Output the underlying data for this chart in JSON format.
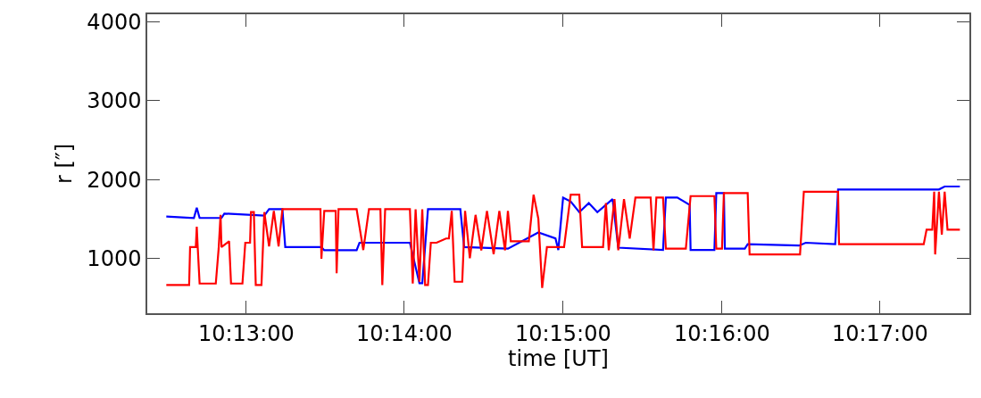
{
  "chart_data": {
    "type": "line",
    "xlabel": "time [UT]",
    "ylabel": "r [″]",
    "xlim": [
      10.2063,
      10.2927
    ],
    "ylim": [
      300,
      4100
    ],
    "xticks": [
      {
        "value": 10.2167,
        "label": "10:13:00"
      },
      {
        "value": 10.2333,
        "label": "10:14:00"
      },
      {
        "value": 10.25,
        "label": "10:15:00"
      },
      {
        "value": 10.2667,
        "label": "10:16:00"
      },
      {
        "value": 10.2833,
        "label": "10:17:00"
      }
    ],
    "yticks": [
      1000,
      2000,
      3000,
      4000
    ],
    "marker": "none",
    "line_style": "solid",
    "series": [
      {
        "color": "#0000ff",
        "x": [
          10.2083,
          10.2112,
          10.2115,
          10.2118,
          10.2141,
          10.2144,
          10.2186,
          10.2191,
          10.2205,
          10.2208,
          10.2246,
          10.2249,
          10.2283,
          10.2286,
          10.2339,
          10.2349,
          10.2352,
          10.2358,
          10.2392,
          10.2396,
          10.2442,
          10.2474,
          10.2492,
          10.2495,
          10.25,
          10.2508,
          10.2517,
          10.2527,
          10.2536,
          10.2552,
          10.2558,
          10.2605,
          10.2608,
          10.262,
          10.2633,
          10.2634,
          10.2659,
          10.2661,
          10.2669,
          10.267,
          10.2691,
          10.2694,
          10.2748,
          10.2755,
          10.2786,
          10.2789,
          10.2895,
          10.2901,
          10.2917
        ],
        "values": [
          1529,
          1511,
          1640,
          1511,
          1511,
          1567,
          1540,
          1622,
          1622,
          1140,
          1140,
          1100,
          1100,
          1196,
          1196,
          681,
          681,
          1622,
          1622,
          1140,
          1120,
          1326,
          1251,
          1103,
          1770,
          1720,
          1585,
          1700,
          1585,
          1751,
          1133,
          1103,
          1770,
          1770,
          1678,
          1103,
          1103,
          1826,
          1826,
          1122,
          1122,
          1178,
          1160,
          1196,
          1178,
          1873,
          1873,
          1911,
          1911
        ]
      },
      {
        "color": "#ff0000",
        "x": [
          10.2083,
          10.2107,
          10.2108,
          10.2114,
          10.2115,
          10.2116,
          10.2118,
          10.2135,
          10.2138,
          10.214,
          10.2141,
          10.2149,
          10.2151,
          10.2163,
          10.2166,
          10.2171,
          10.2172,
          10.2175,
          10.2177,
          10.2183,
          10.2186,
          10.2191,
          10.2196,
          10.2201,
          10.2205,
          10.2245,
          10.2246,
          10.2249,
          10.2261,
          10.2262,
          10.2264,
          10.2283,
          10.229,
          10.2296,
          10.2308,
          10.231,
          10.2313,
          10.2339,
          10.2342,
          10.2345,
          10.2349,
          10.2352,
          10.2355,
          10.2358,
          10.2361,
          10.2367,
          10.2377,
          10.238,
          10.2383,
          10.2386,
          10.2394,
          10.2397,
          10.2402,
          10.2408,
          10.2414,
          10.242,
          10.2427,
          10.2433,
          10.2439,
          10.2442,
          10.2445,
          10.2464,
          10.2469,
          10.2474,
          10.2478,
          10.2483,
          10.2501,
          10.2508,
          10.2517,
          10.252,
          10.2542,
          10.2545,
          10.2548,
          10.2554,
          10.2558,
          10.2564,
          10.257,
          10.2576,
          10.2592,
          10.2595,
          10.2598,
          10.2605,
          10.2608,
          10.2629,
          10.2634,
          10.2659,
          10.2661,
          10.2667,
          10.2669,
          10.2694,
          10.2696,
          10.2749,
          10.2753,
          10.2789,
          10.279,
          10.2879,
          10.2882,
          10.2888,
          10.289,
          10.2891,
          10.2895,
          10.2898,
          10.2901,
          10.2904,
          10.2917
        ],
        "values": [
          659,
          659,
          1140,
          1140,
          1400,
          1140,
          677,
          677,
          1120,
          1550,
          1140,
          1215,
          677,
          677,
          1196,
          1196,
          1585,
          1585,
          659,
          659,
          1585,
          1150,
          1600,
          1150,
          1622,
          1622,
          992,
          1600,
          1600,
          807,
          1622,
          1622,
          1103,
          1622,
          1622,
          659,
          1622,
          1622,
          677,
          1622,
          700,
          1622,
          659,
          659,
          1196,
          1196,
          1250,
          1250,
          1600,
          700,
          700,
          1600,
          1000,
          1550,
          1100,
          1600,
          1050,
          1600,
          1100,
          1600,
          1215,
          1215,
          1807,
          1500,
          622,
          1140,
          1140,
          1807,
          1807,
          1140,
          1140,
          1700,
          1100,
          1750,
          1100,
          1750,
          1250,
          1770,
          1770,
          1100,
          1770,
          1770,
          1122,
          1122,
          1789,
          1789,
          1122,
          1122,
          1826,
          1826,
          1048,
          1048,
          1844,
          1844,
          1178,
          1178,
          1363,
          1363,
          1844,
          1048,
          1844,
          1300,
          1844,
          1363,
          1363
        ]
      }
    ]
  }
}
